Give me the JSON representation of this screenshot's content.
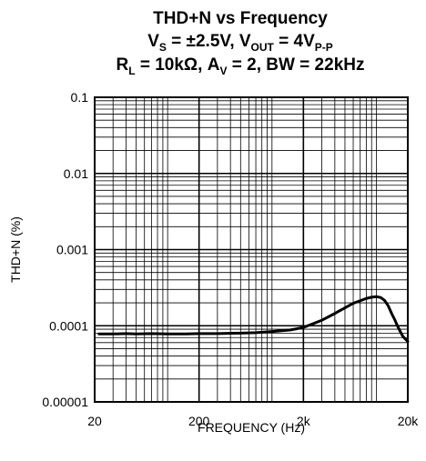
{
  "chart_data": {
    "type": "line",
    "title_lines": [
      [
        {
          "t": "THD+N vs Frequency"
        }
      ],
      [
        {
          "t": "V"
        },
        {
          "t": "S",
          "sub": true
        },
        {
          "t": " = ±2.5V, V"
        },
        {
          "t": "OUT",
          "sub": true
        },
        {
          "t": " = 4V"
        },
        {
          "t": "P-P",
          "sub": true
        }
      ],
      [
        {
          "t": "R"
        },
        {
          "t": "L",
          "sub": true
        },
        {
          "t": " = 10kΩ, A"
        },
        {
          "t": "V",
          "sub": true
        },
        {
          "t": " = 2, BW = 22kHz"
        }
      ]
    ],
    "xlabel": "FREQUENCY (Hz)",
    "ylabel": "THD+N (%)",
    "x_scale": "log",
    "y_scale": "log",
    "xlim": [
      20,
      20000
    ],
    "ylim": [
      1e-05,
      0.1
    ],
    "x_ticks": [
      {
        "value": 20,
        "label": "20"
      },
      {
        "value": 200,
        "label": "200"
      },
      {
        "value": 2000,
        "label": "2k"
      },
      {
        "value": 20000,
        "label": "20k"
      }
    ],
    "y_ticks": [
      {
        "value": 0.1,
        "label": "0.1"
      },
      {
        "value": 0.01,
        "label": "0.01"
      },
      {
        "value": 0.001,
        "label": "0.001"
      },
      {
        "value": 0.0001,
        "label": "0.0001"
      },
      {
        "value": 1e-05,
        "label": "0.00001"
      }
    ],
    "grid": true,
    "series": [
      {
        "x": [
          22,
          30,
          40,
          50,
          70,
          100,
          150,
          200,
          300,
          500,
          700,
          1000,
          1500,
          2000,
          3000,
          4000,
          5000,
          6000,
          7000,
          8000,
          9000,
          10000,
          11000,
          12000,
          13000,
          14000,
          15000,
          16000,
          17000,
          18000,
          20000
        ],
        "y": [
          7.8e-05,
          7.8e-05,
          7.9e-05,
          7.8e-05,
          7.9e-05,
          7.8e-05,
          7.8e-05,
          7.9e-05,
          7.9e-05,
          8e-05,
          8.1e-05,
          8.4e-05,
          8.8e-05,
          9.5e-05,
          0.000118,
          0.000145,
          0.000172,
          0.000197,
          0.000213,
          0.000228,
          0.000237,
          0.000241,
          0.000235,
          0.000215,
          0.000182,
          0.000145,
          0.00012,
          9.8e-05,
          8.3e-05,
          7.2e-05,
          6.2e-05
        ]
      }
    ],
    "colors": {
      "line": "#000000",
      "grid": "#000000",
      "background": "#ffffff"
    }
  }
}
